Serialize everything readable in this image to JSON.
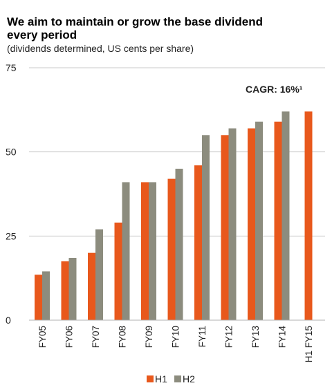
{
  "chart_data": {
    "type": "bar",
    "title_lines": [
      "We aim to maintain or grow the base dividend",
      "every period"
    ],
    "subtitle": "(dividends determined, US cents per share)",
    "xlabel": "",
    "ylabel": "",
    "ylim": [
      0,
      75
    ],
    "yticks": [
      0,
      25,
      50,
      75
    ],
    "categories": [
      "FY05",
      "FY06",
      "FY07",
      "FY08",
      "FY09",
      "FY10",
      "FY11",
      "FY12",
      "FY13",
      "FY14",
      "H1 FY15"
    ],
    "series": [
      {
        "name": "H1",
        "color": "#e8581c",
        "values": [
          13.5,
          17.5,
          20,
          29,
          41,
          42,
          46,
          55,
          57,
          59,
          62
        ]
      },
      {
        "name": "H2",
        "color": "#8c8c7e",
        "values": [
          14.5,
          18.5,
          27,
          41,
          41,
          45,
          55,
          57,
          59,
          62,
          null
        ]
      }
    ],
    "annotation": "CAGR: 16%¹",
    "grid": true,
    "legend_position": "bottom-center"
  }
}
